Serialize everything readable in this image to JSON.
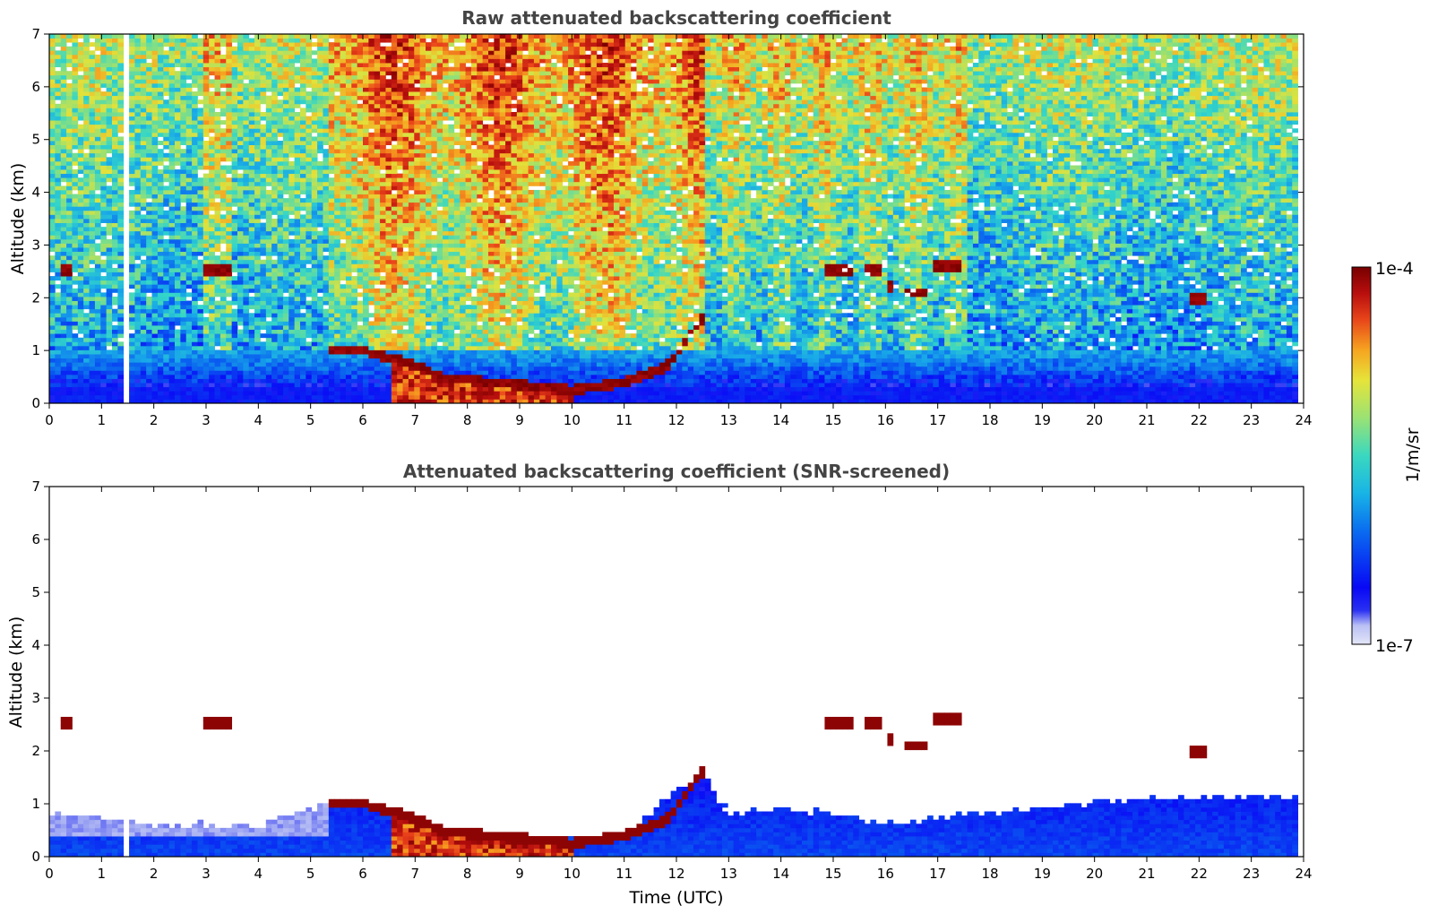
{
  "chart_data": [
    {
      "type": "heatmap",
      "title": "Raw attenuated backscattering coefficient",
      "xlabel": "",
      "ylabel": "Altitude (km)",
      "xlim": [
        0,
        24
      ],
      "ylim": [
        0,
        7
      ],
      "x_ticks": [
        "0",
        "1",
        "2",
        "3",
        "4",
        "5",
        "6",
        "7",
        "8",
        "9",
        "10",
        "11",
        "12",
        "13",
        "14",
        "15",
        "16",
        "17",
        "18",
        "19",
        "20",
        "21",
        "22",
        "23",
        "24"
      ],
      "y_ticks": [
        "0",
        "1",
        "2",
        "3",
        "4",
        "5",
        "6",
        "7"
      ],
      "data_gap_hours": [
        1.42,
        1.55
      ],
      "boundary_layer_top_km": [
        [
          5.3,
          1.0
        ],
        [
          6.0,
          1.0
        ],
        [
          6.8,
          0.8
        ],
        [
          7.5,
          0.5
        ],
        [
          8.5,
          0.4
        ],
        [
          9.5,
          0.3
        ],
        [
          10.0,
          0.25
        ],
        [
          11.0,
          0.4
        ],
        [
          11.8,
          0.7
        ],
        [
          12.2,
          1.2
        ],
        [
          12.45,
          1.6
        ]
      ],
      "cloud_layers": [
        {
          "hours": [
            0.2,
            0.4
          ],
          "altitude_km": 2.5
        },
        {
          "hours": [
            2.9,
            3.45
          ],
          "altitude_km": 2.55
        },
        {
          "hours": [
            14.85,
            15.35
          ],
          "altitude_km": 2.5
        },
        {
          "hours": [
            15.6,
            15.9
          ],
          "altitude_km": 2.5
        },
        {
          "hours": [
            16.0,
            16.2
          ],
          "altitude_km": 2.2
        },
        {
          "hours": [
            16.4,
            16.75
          ],
          "altitude_km": 2.1
        },
        {
          "hours": [
            16.95,
            17.4
          ],
          "altitude_km": 2.6
        },
        {
          "hours": [
            21.8,
            22.2
          ],
          "altitude_km": 2.0
        }
      ]
    },
    {
      "type": "heatmap",
      "title": "Attenuated backscattering coefficient (SNR-screened)",
      "xlabel": "Time (UTC)",
      "ylabel": "Altitude (km)",
      "xlim": [
        0,
        24
      ],
      "ylim": [
        0,
        7
      ],
      "x_ticks": [
        "0",
        "1",
        "2",
        "3",
        "4",
        "5",
        "6",
        "7",
        "8",
        "9",
        "10",
        "11",
        "12",
        "13",
        "14",
        "15",
        "16",
        "17",
        "18",
        "19",
        "20",
        "21",
        "22",
        "23",
        "24"
      ],
      "y_ticks": [
        "0",
        "1",
        "2",
        "3",
        "4",
        "5",
        "6",
        "7"
      ],
      "data_gap_hours": [
        1.42,
        1.55
      ],
      "screened_signal_top_km": [
        [
          0,
          0.8
        ],
        [
          2,
          0.6
        ],
        [
          4,
          0.55
        ],
        [
          5.3,
          1.0
        ],
        [
          6,
          1.0
        ],
        [
          7.5,
          0.5
        ],
        [
          9.5,
          0.3
        ],
        [
          11,
          0.4
        ],
        [
          12.45,
          1.6
        ],
        [
          13,
          0.8
        ],
        [
          14,
          0.9
        ],
        [
          15,
          0.8
        ],
        [
          16,
          0.6
        ],
        [
          18,
          0.8
        ],
        [
          20,
          1.0
        ],
        [
          22,
          1.1
        ],
        [
          24,
          1.1
        ]
      ]
    }
  ],
  "colorbar": {
    "label": "1/m/sr",
    "max_label": "1e-4",
    "min_label": "1e-7",
    "scale": "log",
    "range": [
      1e-07,
      0.0001
    ],
    "colormap": [
      "#e3e6f7",
      "#9fa8f2",
      "#0a0ef5",
      "#0a5ef0",
      "#18a8e8",
      "#34d6c8",
      "#8fe07a",
      "#e2e23a",
      "#f6a220",
      "#e8401a",
      "#b40d0d",
      "#7a0000"
    ]
  }
}
